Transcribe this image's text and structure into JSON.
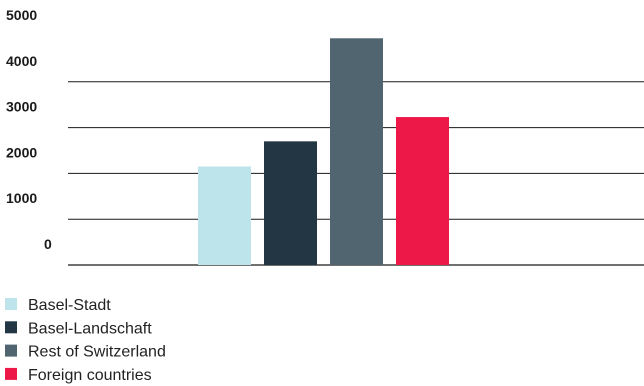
{
  "chart_data": {
    "type": "bar",
    "title": "",
    "xlabel": "",
    "ylabel": "",
    "ylim": [
      0,
      5000
    ],
    "yticks": [
      "0",
      "1000",
      "2000",
      "3000",
      "4000",
      "5000"
    ],
    "grid": true,
    "legend_placement": "bottom-left",
    "categories": [
      "Basel-Stadt",
      "Basel-Landschaft",
      "Rest of Switzerland",
      "Foreign countries"
    ],
    "values": [
      2150,
      2700,
      4950,
      3230
    ],
    "colors": [
      "#bde4ea",
      "#223644",
      "#516571",
      "#ee1848"
    ]
  }
}
